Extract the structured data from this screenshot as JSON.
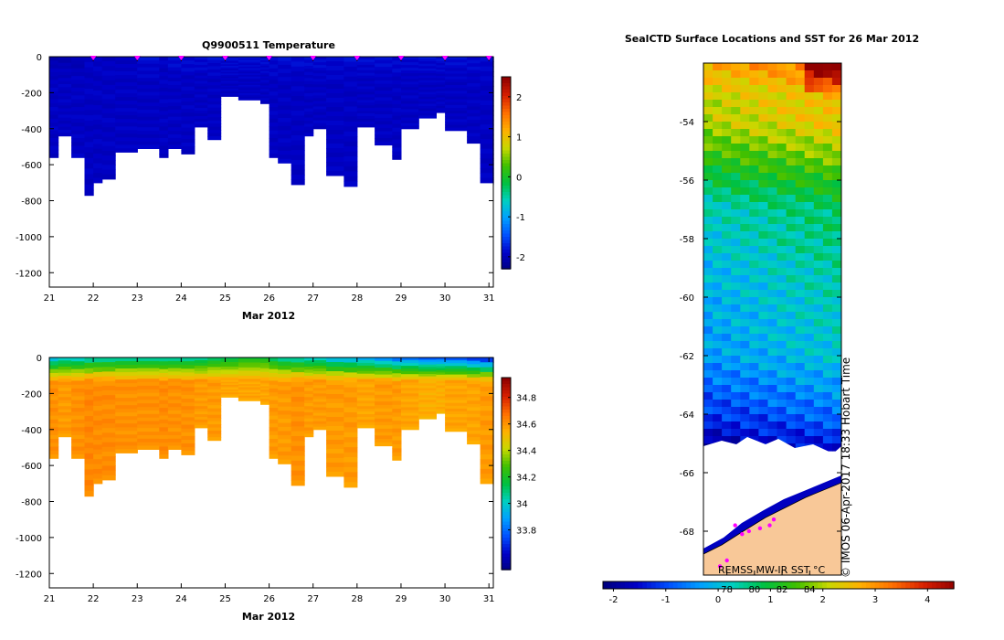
{
  "colors": {
    "temp_scale": [
      "#000080",
      "#0000c8",
      "#0050ff",
      "#00a0ff",
      "#00d0c0",
      "#00c040",
      "#40c000",
      "#c8d800",
      "#ffb000",
      "#ff7000",
      "#d82000",
      "#900000"
    ],
    "sal_scale": [
      "#000080",
      "#0000c8",
      "#0050ff",
      "#00a0ff",
      "#00d0c0",
      "#00c040",
      "#40c000",
      "#c8d800",
      "#ffb000",
      "#ff7000",
      "#d82000",
      "#900000"
    ],
    "land": "#f8c898",
    "ice": "#ffffff",
    "track": "#ff00ff"
  },
  "chart_data": [
    {
      "type": "heatmap",
      "name": "temperature-section",
      "title": "Q9900511  Temperature",
      "xlabel": "Mar 2012",
      "x_ticks": [
        "21",
        "22",
        "23",
        "24",
        "25",
        "26",
        "27",
        "28",
        "29",
        "30",
        "31"
      ],
      "xlim": [
        21,
        31.1
      ],
      "ylim": [
        -1280,
        0
      ],
      "y_ticks": [
        0,
        -200,
        -400,
        -600,
        -800,
        -1000,
        -1200
      ],
      "y_tick_labels": [
        "0",
        "-200",
        "-400",
        "-600",
        "-800",
        "-1000",
        "-1200"
      ],
      "colorbar": {
        "min": -2.3,
        "max": 2.5,
        "ticks": [
          2,
          1,
          0,
          -1,
          -2
        ],
        "tick_labels": [
          "2",
          "1",
          "0",
          "-1",
          "-2"
        ]
      },
      "surface_markers": [
        22,
        23,
        24,
        25,
        26,
        27,
        28,
        29,
        30,
        31
      ],
      "profiles_time": [
        21.0,
        21.2,
        21.5,
        21.8,
        22.0,
        22.2,
        22.5,
        23.0,
        23.5,
        23.7,
        24.0,
        24.3,
        24.6,
        24.9,
        25.3,
        25.8,
        26.0,
        26.2,
        26.5,
        26.8,
        27.0,
        27.3,
        27.7,
        28.0,
        28.4,
        28.8,
        29.0,
        29.4,
        29.8,
        30.0,
        30.5,
        30.8,
        31.1
      ],
      "profiles_max_depth": [
        -560,
        -440,
        -560,
        -770,
        -700,
        -680,
        -530,
        -510,
        -560,
        -510,
        -540,
        -390,
        -460,
        -220,
        -240,
        -260,
        -560,
        -590,
        -710,
        -440,
        -400,
        -660,
        -720,
        -390,
        -490,
        -570,
        -400,
        -340,
        -310,
        -410,
        -480,
        -700,
        -710
      ],
      "surface_values": [
        -2.0,
        -2.0,
        -2.0,
        -1.9,
        -1.9,
        -1.9,
        -1.9,
        -1.8,
        -1.9,
        -1.8,
        -1.8,
        -1.8,
        -1.8,
        -1.8,
        -1.8,
        -1.8,
        -1.8,
        -1.8,
        -1.8,
        -1.8,
        -1.8,
        -1.8,
        -1.8,
        -1.8,
        -1.8,
        -1.8,
        -1.8,
        -1.8,
        -1.8,
        -1.8,
        -1.8,
        -1.8,
        -1.8
      ],
      "deep_values": [
        -1.9,
        -1.9,
        -1.9,
        -1.9,
        -1.9,
        -1.9,
        -1.9,
        -1.9,
        -1.9,
        -1.9,
        -1.9,
        -1.9,
        -1.9,
        -1.9,
        -1.9,
        -1.9,
        -1.9,
        -1.9,
        -1.9,
        -1.9,
        -1.9,
        -1.9,
        -1.9,
        -1.9,
        -1.9,
        -1.9,
        -1.9,
        -1.9,
        -1.9,
        -1.9,
        -1.9,
        -1.9,
        -1.9
      ]
    },
    {
      "type": "heatmap",
      "name": "salinity-section",
      "title": "",
      "xlabel": "Mar 2012",
      "x_ticks": [
        "21",
        "22",
        "23",
        "24",
        "25",
        "26",
        "27",
        "28",
        "29",
        "30",
        "31"
      ],
      "xlim": [
        21,
        31.1
      ],
      "ylim": [
        -1280,
        0
      ],
      "y_ticks": [
        0,
        -200,
        -400,
        -600,
        -800,
        -1000,
        -1200
      ],
      "y_tick_labels": [
        "0",
        "-200",
        "-400",
        "-600",
        "-800",
        "-1000",
        "-1200"
      ],
      "colorbar": {
        "min": 33.5,
        "max": 34.95,
        "ticks": [
          34.8,
          34.6,
          34.4,
          34.2,
          34,
          33.8
        ],
        "tick_labels": [
          "34.8",
          "34.6",
          "34.4",
          "34.2",
          "34",
          "33.8"
        ]
      },
      "profiles_time": [
        21.0,
        21.2,
        21.5,
        21.8,
        22.0,
        22.2,
        22.5,
        23.0,
        23.5,
        23.7,
        24.0,
        24.3,
        24.6,
        24.9,
        25.3,
        25.8,
        26.0,
        26.2,
        26.5,
        26.8,
        27.0,
        27.3,
        27.7,
        28.0,
        28.4,
        28.8,
        29.0,
        29.4,
        29.8,
        30.0,
        30.5,
        30.8,
        31.1
      ],
      "profiles_max_depth": [
        -560,
        -440,
        -560,
        -770,
        -700,
        -680,
        -530,
        -510,
        -560,
        -510,
        -540,
        -390,
        -460,
        -220,
        -240,
        -260,
        -560,
        -590,
        -710,
        -440,
        -400,
        -660,
        -720,
        -390,
        -490,
        -570,
        -400,
        -340,
        -310,
        -410,
        -480,
        -700,
        -710
      ],
      "surface_values": [
        34.0,
        34.05,
        34.05,
        34.1,
        34.1,
        34.1,
        34.1,
        34.1,
        34.1,
        34.1,
        34.1,
        34.1,
        34.15,
        34.15,
        34.2,
        34.2,
        34.15,
        34.1,
        34.1,
        34.05,
        34.05,
        34.0,
        34.0,
        33.95,
        33.9,
        33.85,
        33.85,
        33.8,
        33.8,
        33.8,
        33.75,
        33.75,
        33.75
      ],
      "deep_values": [
        34.62,
        34.6,
        34.62,
        34.64,
        34.63,
        34.63,
        34.62,
        34.62,
        34.63,
        34.62,
        34.62,
        34.6,
        34.6,
        34.58,
        34.58,
        34.58,
        34.6,
        34.6,
        34.62,
        34.6,
        34.6,
        34.6,
        34.6,
        34.58,
        34.6,
        34.6,
        34.58,
        34.56,
        34.56,
        34.58,
        34.58,
        34.6,
        34.6
      ]
    },
    {
      "type": "map",
      "name": "sst-map",
      "title": "SealCTD Surface Locations and SST for 26 Mar 2012",
      "latitude_range": [
        -69.5,
        -52.0
      ],
      "y_ticks": [
        -54,
        -56,
        -58,
        -60,
        -62,
        -64,
        -66,
        -68
      ],
      "y_tick_labels": [
        "-54",
        "-56",
        "-58",
        "-60",
        "-62",
        "-64",
        "-66",
        "-68"
      ],
      "lon_tick_labels": [
        "78",
        "80",
        "82",
        "84"
      ],
      "lon_ticks": [
        78,
        80,
        82,
        84
      ],
      "lon_range": [
        76.3,
        86.3
      ],
      "colorbar": {
        "min": -2.2,
        "max": 4.5,
        "ticks": [
          -2,
          -1,
          0,
          1,
          2,
          3,
          4
        ],
        "tick_labels": [
          "-2",
          "-1",
          "0",
          "1",
          "2",
          "3",
          "4"
        ]
      },
      "credit": "REMSS MW-IR SST °C",
      "stamp": "© IMOS 06-Apr-2017 18:33 Hobart Time",
      "sst_by_latitude": [
        [
          -52.0,
          3.0
        ],
        [
          -53.0,
          2.3
        ],
        [
          -54.0,
          2.2
        ],
        [
          -55.0,
          1.6
        ],
        [
          -56.0,
          1.0
        ],
        [
          -57.0,
          0.4
        ],
        [
          -58.0,
          0.3
        ],
        [
          -59.0,
          0.1
        ],
        [
          -60.0,
          0.0
        ],
        [
          -61.0,
          -0.1
        ],
        [
          -62.0,
          -0.2
        ],
        [
          -63.0,
          -0.6
        ],
        [
          -64.0,
          -1.0
        ],
        [
          -65.0,
          -1.6
        ],
        [
          -65.8,
          -1.8
        ]
      ],
      "ice_edge_lat": -65.8,
      "coast_lat": -68.0,
      "seal_positions": [
        [
          78.6,
          -67.8
        ],
        [
          79.1,
          -68.1
        ],
        [
          79.6,
          -68.0
        ],
        [
          80.4,
          -67.9
        ],
        [
          81.1,
          -67.8
        ],
        [
          81.4,
          -67.6
        ],
        [
          78.0,
          -69.0
        ],
        [
          77.5,
          -69.2
        ]
      ]
    }
  ]
}
